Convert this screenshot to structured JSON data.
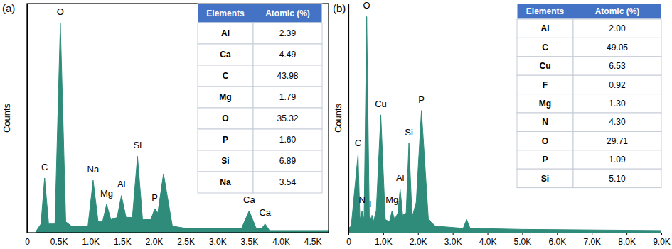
{
  "chart_data": [
    {
      "type": "area",
      "title": "(a)",
      "y_label": "Counts",
      "color": "#2f8c7b",
      "x": [
        150,
        220,
        277,
        340,
        440,
        525,
        610,
        700,
        960,
        1041,
        1120,
        1190,
        1254,
        1320,
        1420,
        1487,
        1560,
        1660,
        1740,
        1820,
        1950,
        2013,
        2060,
        2150,
        2290,
        2500,
        3380,
        3500,
        3610,
        3700,
        3750,
        3820,
        4750
      ],
      "values": [
        1,
        4,
        25,
        4,
        4,
        96,
        5,
        3,
        3,
        24,
        5,
        5,
        13,
        6,
        7,
        17,
        7,
        7,
        35,
        6,
        6,
        11,
        9,
        27,
        3,
        2,
        2,
        10,
        2,
        2,
        4,
        1,
        1
      ],
      "xlim": [
        0,
        4750
      ],
      "xticks": [
        0,
        {
          "value": 500,
          "label": "0.5K"
        },
        {
          "value": 1000,
          "label": "1.0K"
        },
        {
          "value": 1500,
          "label": "1.5K"
        },
        {
          "value": 2000,
          "label": "2.0K"
        },
        {
          "value": 2500,
          "label": "2.5K"
        },
        {
          "value": 3000,
          "label": "3.0K"
        },
        {
          "value": 3500,
          "label": "3.5K"
        },
        {
          "value": 4000,
          "label": "4.0K"
        },
        {
          "value": 4500,
          "label": "4.5K"
        }
      ],
      "ylim": [
        0,
        105
      ],
      "tick_labels": "x",
      "grid": false,
      "annotations": [
        {
          "text": "C",
          "x": 277,
          "y": 28
        },
        {
          "text": "O",
          "x": 525,
          "y": 99
        },
        {
          "text": "Na",
          "x": 1041,
          "y": 27
        },
        {
          "text": "Mg",
          "x": 1254,
          "y": 16
        },
        {
          "text": "Al",
          "x": 1487,
          "y": 20
        },
        {
          "text": "Si",
          "x": 1740,
          "y": 38
        },
        {
          "text": "P",
          "x": 2013,
          "y": 14
        },
        {
          "text": "Ca",
          "x": 3500,
          "y": 13
        },
        {
          "text": "Ca",
          "x": 3750,
          "y": 7
        }
      ],
      "table": {
        "header": [
          "Elements",
          "Atomic (%)"
        ],
        "rows": [
          [
            "Al",
            "2.39"
          ],
          [
            "Ca",
            "4.49"
          ],
          [
            "C",
            "43.98"
          ],
          [
            "Mg",
            "1.79"
          ],
          [
            "O",
            "35.32"
          ],
          [
            "P",
            "1.60"
          ],
          [
            "Si",
            "6.89"
          ],
          [
            "Na",
            "3.54"
          ]
        ]
      }
    },
    {
      "type": "area",
      "title": "(b)",
      "y_label": "Counts",
      "color": "#2f8c7b",
      "x": [
        0,
        80,
        277,
        330,
        392,
        450,
        525,
        600,
        660,
        677,
        720,
        800,
        930,
        1060,
        1180,
        1254,
        1330,
        1420,
        1487,
        1560,
        1660,
        1740,
        1830,
        1950,
        2100,
        2300,
        2500,
        3300,
        3400,
        3500,
        5000,
        9000
      ],
      "values": [
        2,
        3,
        36,
        6,
        10,
        6,
        99,
        8,
        6,
        8,
        5,
        10,
        54,
        6,
        5,
        10,
        6,
        9,
        20,
        8,
        9,
        41,
        7,
        14,
        56,
        6,
        3,
        2,
        6,
        2,
        1.5,
        1
      ],
      "xlim": [
        0,
        9000
      ],
      "xticks": [
        0,
        {
          "value": 1000,
          "label": "1.0K"
        },
        {
          "value": 2000,
          "label": "2.0K"
        },
        {
          "value": 3000,
          "label": "3.0K"
        },
        {
          "value": 4000,
          "label": "4.0K"
        },
        {
          "value": 5000,
          "label": "5.0K"
        },
        {
          "value": 6000,
          "label": "6.0K"
        },
        {
          "value": 7000,
          "label": "7.0K"
        },
        {
          "value": 8000,
          "label": "8.0K"
        },
        {
          "value": 9000,
          "label": "9.0K"
        }
      ],
      "ylim": [
        0,
        105
      ],
      "tick_labels": "x",
      "grid": false,
      "annotations": [
        {
          "text": "C",
          "x": 277,
          "y": 39
        },
        {
          "text": "N",
          "x": 392,
          "y": 13
        },
        {
          "text": "O",
          "x": 525,
          "y": 102
        },
        {
          "text": "F",
          "x": 677,
          "y": 11
        },
        {
          "text": "Cu",
          "x": 930,
          "y": 57
        },
        {
          "text": "Mg",
          "x": 1254,
          "y": 13
        },
        {
          "text": "Al",
          "x": 1487,
          "y": 23
        },
        {
          "text": "Si",
          "x": 1740,
          "y": 44
        },
        {
          "text": "P",
          "x": 2100,
          "y": 59
        }
      ],
      "table": {
        "header": [
          "Elements",
          "Atomic (%)"
        ],
        "rows": [
          [
            "Al",
            "2.00"
          ],
          [
            "C",
            "49.05"
          ],
          [
            "Cu",
            "6.53"
          ],
          [
            "F",
            "0.92"
          ],
          [
            "Mg",
            "1.30"
          ],
          [
            "N",
            "4.30"
          ],
          [
            "O",
            "29.71"
          ],
          [
            "P",
            "1.09"
          ],
          [
            "Si",
            "5.10"
          ]
        ]
      }
    }
  ]
}
